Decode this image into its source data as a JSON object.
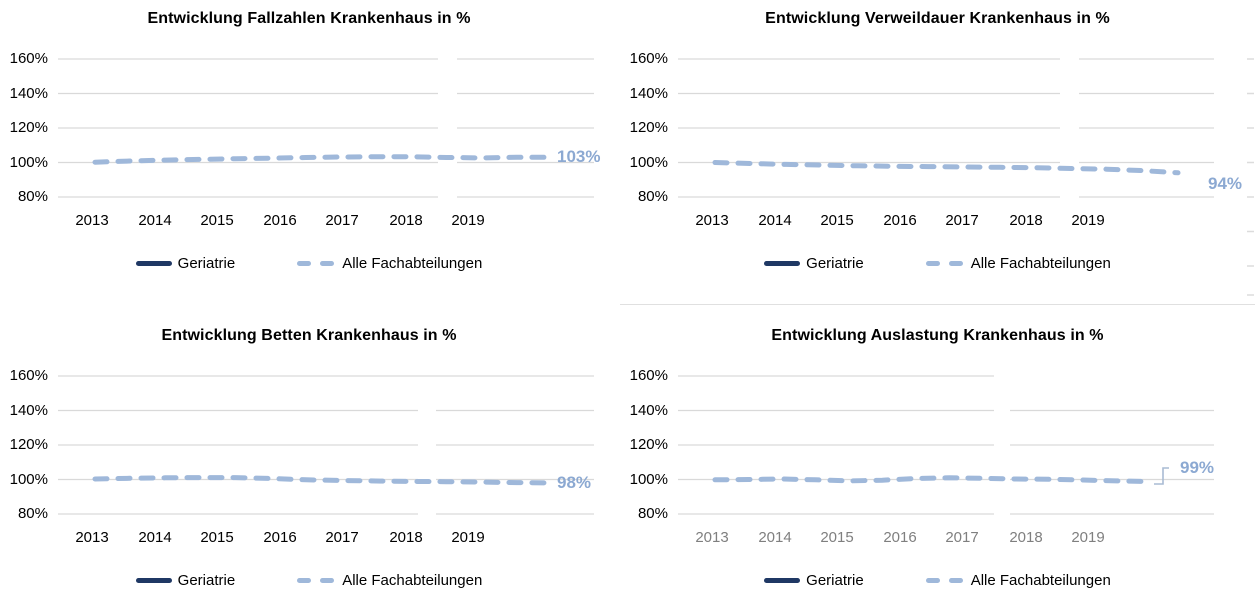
{
  "page": {
    "background": "#FFFFFF",
    "language": "de"
  },
  "colors": {
    "series_geriatrie": "#1F3864",
    "series_alle_fachabteilungen": "#9FB8DA",
    "end_label": "#8CA9D2",
    "gridline": "#D9D9D9",
    "axis_label": "#000000",
    "axis_label_muted": "#7F7F7F",
    "title": "#000000"
  },
  "legend": {
    "position": "bottom",
    "items": [
      {
        "name": "Geriatrie",
        "style": "solid-line"
      },
      {
        "name": "Alle Fachabteilungen",
        "style": "dashed-line"
      }
    ]
  },
  "chart_data": [
    {
      "type": "line",
      "title": "Entwicklung Fallzahlen Krankenhaus in %",
      "unit": "%",
      "grid": true,
      "legend_position": "bottom",
      "y_ticks": [
        "160%",
        "140%",
        "120%",
        "100%",
        "80%"
      ],
      "ylim": [
        80,
        160
      ],
      "x_labels": [
        "2013",
        "2014",
        "2015",
        "2016",
        "2017",
        "2018",
        "2019"
      ],
      "x_values": [
        2013,
        2013.5,
        2014,
        2014.5,
        2015,
        2015.5,
        2016,
        2016.5,
        2017,
        2017.5,
        2018,
        2018.5,
        2019,
        2019.5
      ],
      "series": [
        {
          "name": "Geriatrie",
          "visible_in_plot": false,
          "values": []
        },
        {
          "name": "Alle Fachabteilungen",
          "visible_in_plot": true,
          "values": [
            100.2,
            100.9,
            101.4,
            101.8,
            102.2,
            102.5,
            102.9,
            103.2,
            103.4,
            103.4,
            102.9,
            102.7,
            103.0,
            103.0
          ]
        }
      ],
      "end_label": "103%",
      "end_value": 103
    },
    {
      "type": "line",
      "title": "Entwicklung Verweildauer Krankenhaus in %",
      "unit": "%",
      "grid": true,
      "legend_position": "bottom",
      "y_ticks": [
        "160%",
        "140%",
        "120%",
        "100%",
        "80%"
      ],
      "ylim": [
        80,
        160
      ],
      "x_labels": [
        "2013",
        "2014",
        "2015",
        "2016",
        "2017",
        "2018",
        "2019"
      ],
      "x_values": [
        2013,
        2013.5,
        2014,
        2014.5,
        2015,
        2015.5,
        2016,
        2016.5,
        2017,
        2017.5,
        2018,
        2018.5,
        2019,
        2019.5
      ],
      "series": [
        {
          "name": "Geriatrie",
          "visible_in_plot": false,
          "values": []
        },
        {
          "name": "Alle Fachabteilungen",
          "visible_in_plot": true,
          "values": [
            100.0,
            99.4,
            98.9,
            98.5,
            98.1,
            97.8,
            97.6,
            97.4,
            97.2,
            97.0,
            96.5,
            96.1,
            95.3,
            94.0
          ]
        }
      ],
      "end_label": "94%",
      "end_value": 94
    },
    {
      "type": "line",
      "title": "Entwicklung Betten Krankenhaus in %",
      "unit": "%",
      "grid": true,
      "legend_position": "bottom",
      "y_ticks": [
        "160%",
        "140%",
        "120%",
        "100%",
        "80%"
      ],
      "ylim": [
        80,
        160
      ],
      "x_labels": [
        "2013",
        "2014",
        "2015",
        "2016",
        "2017",
        "2018",
        "2019"
      ],
      "x_values": [
        2013,
        2013.5,
        2014,
        2014.5,
        2015,
        2015.5,
        2016,
        2016.5,
        2017,
        2017.5,
        2018,
        2018.5,
        2019,
        2019.5
      ],
      "series": [
        {
          "name": "Geriatrie",
          "visible_in_plot": false,
          "values": []
        },
        {
          "name": "Alle Fachabteilungen",
          "visible_in_plot": true,
          "values": [
            100.3,
            100.7,
            101.0,
            101.1,
            101.1,
            100.6,
            99.8,
            99.4,
            99.1,
            98.9,
            98.7,
            98.5,
            98.2,
            98.0
          ]
        }
      ],
      "end_label": "98%",
      "end_value": 98
    },
    {
      "type": "line",
      "title": "Entwicklung Auslastung Krankenhaus in %",
      "unit": "%",
      "grid": true,
      "legend_position": "bottom",
      "y_ticks": [
        "160%",
        "140%",
        "120%",
        "100%",
        "80%"
      ],
      "ylim": [
        80,
        160
      ],
      "x_labels": [
        "2013",
        "2014",
        "2015",
        "2016",
        "2017",
        "2018",
        "2019"
      ],
      "x_labels_muted": true,
      "x_values": [
        2013,
        2013.5,
        2014,
        2014.5,
        2015,
        2015.5,
        2016,
        2016.5,
        2017,
        2017.5,
        2018,
        2018.5,
        2019,
        2019.5
      ],
      "series": [
        {
          "name": "Geriatrie",
          "visible_in_plot": false,
          "values": []
        },
        {
          "name": "Alle Fachabteilungen",
          "visible_in_plot": true,
          "values": [
            99.8,
            100.0,
            100.3,
            99.8,
            99.2,
            99.6,
            100.6,
            101.0,
            100.7,
            100.3,
            100.1,
            99.7,
            99.2,
            98.8
          ]
        }
      ],
      "end_label": "99%",
      "end_value": 99,
      "end_label_has_leader_line": true
    }
  ]
}
